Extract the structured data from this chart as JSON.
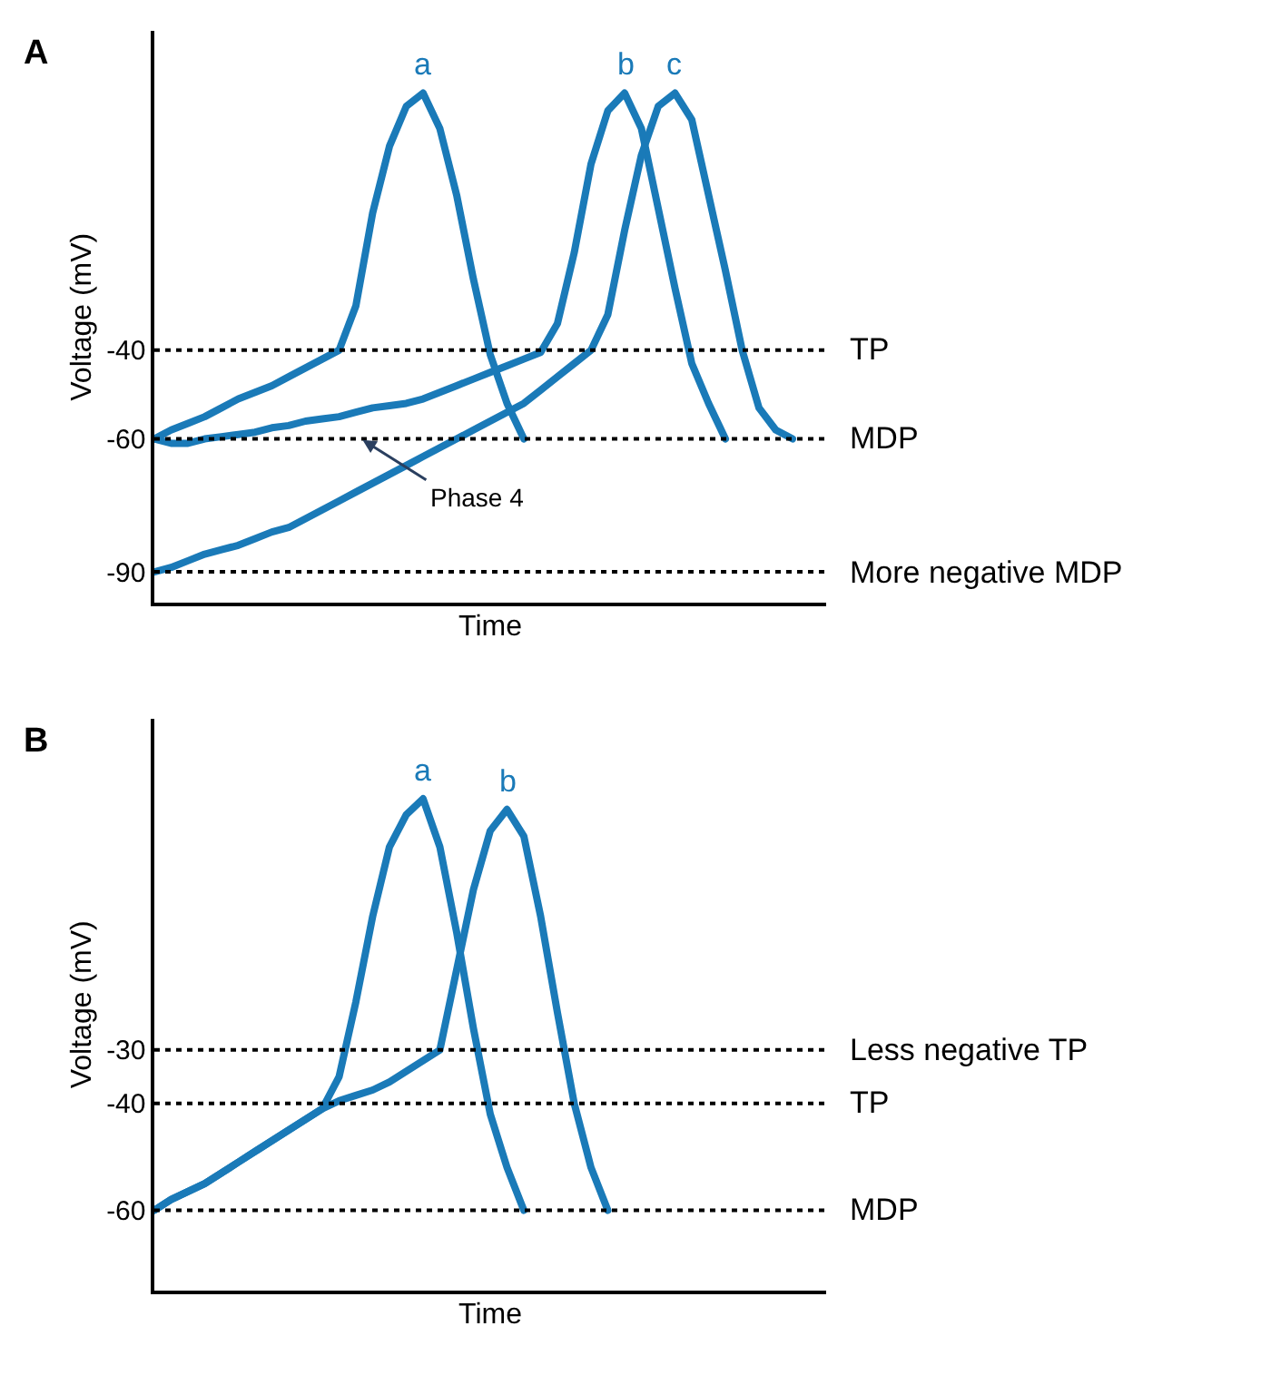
{
  "chart_data": [
    {
      "type": "line",
      "title": "A",
      "xlabel": "Time",
      "ylabel": "Voltage (mV)",
      "categories": [
        null,
        null,
        null,
        null,
        null,
        null,
        null,
        null,
        null,
        null,
        null,
        null,
        null,
        null,
        null,
        null,
        null,
        null,
        null,
        null,
        null,
        null,
        null,
        null,
        null,
        null,
        null,
        null,
        null,
        null,
        null,
        null,
        null,
        null,
        null,
        null,
        null,
        null,
        null,
        null,
        null
      ],
      "ylim": [
        -97,
        32
      ],
      "yticks": [
        -90,
        -60,
        -40
      ],
      "tick_labels": "y",
      "legend": false,
      "marker": "none",
      "line_style": "solid",
      "series": [
        {
          "name": "a",
          "color": "#1a7ab8",
          "values": [
            -60,
            -58,
            -56.5,
            -55,
            -53,
            -51,
            -49.5,
            -48,
            -46,
            -44,
            -42,
            -40,
            -30,
            -9,
            6,
            15,
            18,
            10,
            -5,
            -24,
            -41,
            -52,
            -60,
            null,
            null,
            null,
            null,
            null,
            null,
            null,
            null,
            null,
            null,
            null,
            null,
            null,
            null,
            null,
            null,
            null,
            null
          ]
        },
        {
          "name": "b",
          "color": "#1a7ab8",
          "values": [
            -60,
            -61,
            -61,
            -60,
            -59.5,
            -59,
            -58.5,
            -57.5,
            -57,
            -56,
            -55.5,
            -55,
            -54,
            -53,
            -52.5,
            -52,
            -51,
            -49.5,
            -48,
            -46.5,
            -45,
            -43.5,
            -42,
            -40.5,
            -34,
            -18,
            2,
            14,
            18,
            10,
            -8,
            -26,
            -43,
            -52,
            -60,
            null,
            null,
            null,
            null,
            null,
            null
          ]
        },
        {
          "name": "c",
          "color": "#1a7ab8",
          "values": [
            -90,
            -89,
            -87.5,
            -86,
            -85,
            -84,
            -82.5,
            -81,
            -80,
            -78,
            -76,
            -74,
            -72,
            -70,
            -68,
            -66,
            -64,
            -62,
            -60,
            -58,
            -56,
            -54,
            -52,
            -49,
            -46,
            -43,
            -40,
            -32,
            -13,
            4,
            15,
            18,
            12,
            -5,
            -22,
            -40,
            -53,
            -58,
            -60,
            null,
            null
          ]
        }
      ],
      "ref_lines": [
        {
          "axis": "y",
          "value": -40,
          "label": "TP",
          "color": "#000000",
          "line_style": "dotted"
        },
        {
          "axis": "y",
          "value": -60,
          "label": "MDP",
          "color": "#000000",
          "line_style": "dotted"
        },
        {
          "axis": "y",
          "value": -90,
          "label": "More negative MDP",
          "color": "#000000",
          "line_style": "dotted"
        }
      ],
      "annotations": [
        "Phase 4"
      ]
    },
    {
      "type": "line",
      "title": "B",
      "xlabel": "Time",
      "ylabel": "Voltage (mV)",
      "categories": [
        null,
        null,
        null,
        null,
        null,
        null,
        null,
        null,
        null,
        null,
        null,
        null,
        null,
        null,
        null,
        null,
        null,
        null,
        null,
        null,
        null,
        null,
        null,
        null,
        null,
        null,
        null,
        null,
        null,
        null,
        null,
        null,
        null,
        null,
        null,
        null,
        null,
        null,
        null,
        null,
        null
      ],
      "ylim": [
        -75,
        32
      ],
      "yticks": [
        -60,
        -40,
        -30
      ],
      "tick_labels": "y",
      "legend": false,
      "marker": "none",
      "line_style": "solid",
      "series": [
        {
          "name": "a",
          "color": "#1a7ab8",
          "values": [
            -60,
            -58,
            -56.5,
            -55,
            -53,
            -51,
            -49,
            -47,
            -45,
            -43,
            -41,
            -35,
            -21,
            -5,
            8,
            14,
            17,
            8,
            -8,
            -26,
            -42,
            -52,
            -60,
            null,
            null,
            null,
            null,
            null,
            null,
            null,
            null,
            null,
            null,
            null,
            null,
            null,
            null,
            null,
            null,
            null,
            null
          ]
        },
        {
          "name": "b",
          "color": "#1a7ab8",
          "values": [
            -60,
            -58,
            -56.5,
            -55,
            -53,
            -51,
            -49,
            -47,
            -45,
            -43,
            -41,
            -39.5,
            -38.5,
            -37.5,
            -36,
            -34,
            -32,
            -30,
            -15,
            0,
            11,
            15,
            10,
            -5,
            -23,
            -40,
            -52,
            -60,
            null,
            null,
            null,
            null,
            null,
            null,
            null,
            null,
            null,
            null,
            null,
            null,
            null
          ]
        }
      ],
      "ref_lines": [
        {
          "axis": "y",
          "value": -30,
          "label": "Less negative TP",
          "color": "#000000",
          "line_style": "dotted"
        },
        {
          "axis": "y",
          "value": -40,
          "label": "TP",
          "color": "#000000",
          "line_style": "dotted"
        },
        {
          "axis": "y",
          "value": -60,
          "label": "MDP",
          "color": "#000000",
          "line_style": "dotted"
        }
      ]
    }
  ]
}
